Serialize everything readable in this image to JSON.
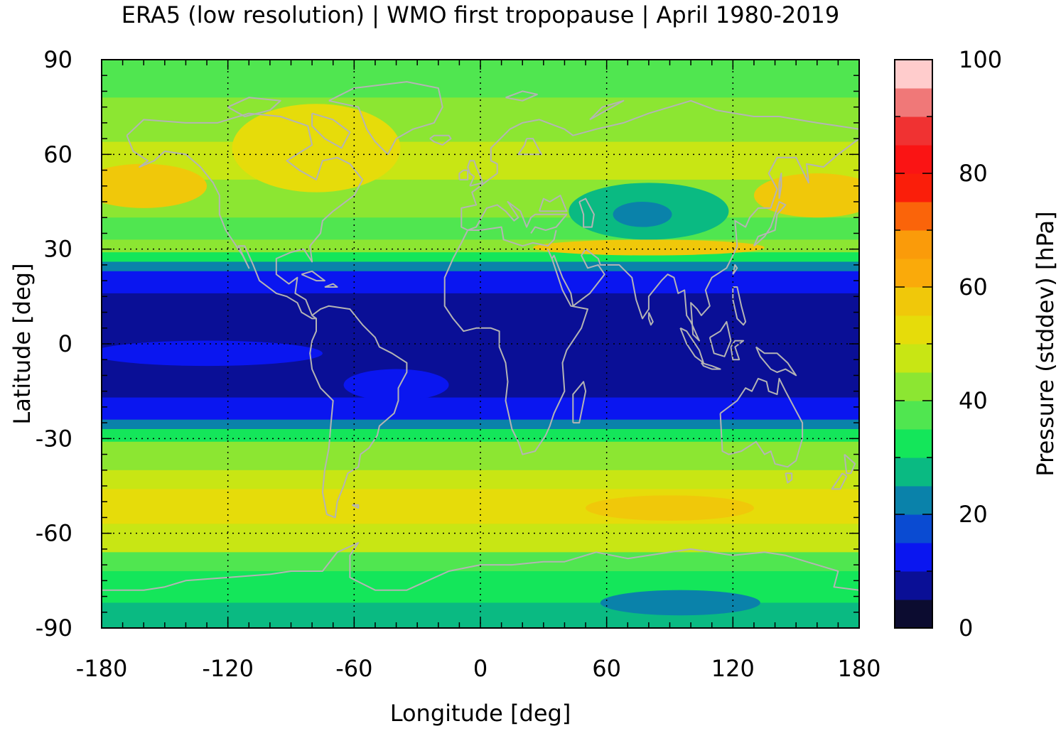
{
  "chart_data": {
    "type": "heatmap",
    "title": "ERA5 (low resolution) | WMO first tropopause | April 1980-2019",
    "xlabel": "Longitude [deg]",
    "ylabel": "Latitude [deg]",
    "colorbar_label": "Pressure (stddev) [hPa]",
    "xlim": [
      -180,
      180
    ],
    "ylim": [
      -90,
      90
    ],
    "x_ticks": [
      -180,
      -120,
      -60,
      0,
      60,
      120,
      180
    ],
    "y_ticks": [
      90,
      60,
      30,
      0,
      -30,
      -60,
      -90
    ],
    "x_tick_labels": [
      "-180",
      "-120",
      "-60",
      "0",
      "60",
      "120",
      "180"
    ],
    "y_tick_labels": [
      "90",
      "60",
      "30",
      "0",
      "-30",
      "-60",
      "-90"
    ],
    "grid": true,
    "colorbar": {
      "range": [
        0,
        100
      ],
      "ticks": [
        0,
        20,
        40,
        60,
        80,
        100
      ],
      "tick_labels": [
        "0",
        "20",
        "40",
        "60",
        "80",
        "100"
      ],
      "levels": [
        {
          "from": 0,
          "to": 5,
          "color": "#0c0c30"
        },
        {
          "from": 5,
          "to": 10,
          "color": "#0a0f96"
        },
        {
          "from": 10,
          "to": 15,
          "color": "#0a16f0"
        },
        {
          "from": 15,
          "to": 20,
          "color": "#0a4bd2"
        },
        {
          "from": 20,
          "to": 25,
          "color": "#0a82aa"
        },
        {
          "from": 25,
          "to": 30,
          "color": "#0aba82"
        },
        {
          "from": 30,
          "to": 35,
          "color": "#14e65a"
        },
        {
          "from": 35,
          "to": 40,
          "color": "#50e650"
        },
        {
          "from": 40,
          "to": 45,
          "color": "#8ce632"
        },
        {
          "from": 45,
          "to": 50,
          "color": "#c8e614"
        },
        {
          "from": 50,
          "to": 55,
          "color": "#e6dc0a"
        },
        {
          "from": 55,
          "to": 60,
          "color": "#f0c80a"
        },
        {
          "from": 60,
          "to": 65,
          "color": "#faaa0a"
        },
        {
          "from": 65,
          "to": 70,
          "color": "#fa9b0a"
        },
        {
          "from": 70,
          "to": 75,
          "color": "#fa640a"
        },
        {
          "from": 75,
          "to": 80,
          "color": "#fa1e0a"
        },
        {
          "from": 80,
          "to": 85,
          "color": "#fa1414"
        },
        {
          "from": 85,
          "to": 90,
          "color": "#f03232"
        },
        {
          "from": 90,
          "to": 95,
          "color": "#f07878"
        },
        {
          "from": 95,
          "to": 100,
          "color": "#ffcccc"
        }
      ]
    },
    "zonal_bands": [
      {
        "lat_from": 90,
        "lat_to": 78,
        "value": 38
      },
      {
        "lat_from": 78,
        "lat_to": 64,
        "value": 44
      },
      {
        "lat_from": 64,
        "lat_to": 52,
        "value": 49
      },
      {
        "lat_from": 52,
        "lat_to": 40,
        "value": 43
      },
      {
        "lat_from": 40,
        "lat_to": 33,
        "value": 37
      },
      {
        "lat_from": 33,
        "lat_to": 29,
        "value": 42
      },
      {
        "lat_from": 29,
        "lat_to": 26,
        "value": 32
      },
      {
        "lat_from": 26,
        "lat_to": 23,
        "value": 22
      },
      {
        "lat_from": 23,
        "lat_to": 16,
        "value": 12
      },
      {
        "lat_from": 16,
        "lat_to": -17,
        "value": 7
      },
      {
        "lat_from": -17,
        "lat_to": -24,
        "value": 12
      },
      {
        "lat_from": -24,
        "lat_to": -27,
        "value": 22
      },
      {
        "lat_from": -27,
        "lat_to": -31,
        "value": 33
      },
      {
        "lat_from": -31,
        "lat_to": -40,
        "value": 43
      },
      {
        "lat_from": -40,
        "lat_to": -46,
        "value": 47
      },
      {
        "lat_from": -46,
        "lat_to": -57,
        "value": 52
      },
      {
        "lat_from": -57,
        "lat_to": -66,
        "value": 46
      },
      {
        "lat_from": -66,
        "lat_to": -72,
        "value": 39
      },
      {
        "lat_from": -72,
        "lat_to": -82,
        "value": 33
      },
      {
        "lat_from": -82,
        "lat_to": -90,
        "value": 28
      }
    ],
    "features": [
      {
        "name": "asia-low",
        "lon_center": 80,
        "lat_center": 42,
        "lon_radius": 38,
        "lat_radius": 9,
        "value": 28
      },
      {
        "name": "asia-core",
        "lon_center": 77,
        "lat_center": 41,
        "lon_radius": 14,
        "lat_radius": 4,
        "value": 22
      },
      {
        "name": "north-america-high",
        "lon_center": -78,
        "lat_center": 62,
        "lon_radius": 40,
        "lat_radius": 14,
        "value": 54
      },
      {
        "name": "north-pacific-high",
        "lon_center": -160,
        "lat_center": 50,
        "lon_radius": 30,
        "lat_radius": 7,
        "value": 55
      },
      {
        "name": "north-pacific-high-east",
        "lon_center": 160,
        "lat_center": 47,
        "lon_radius": 30,
        "lat_radius": 7,
        "value": 55
      },
      {
        "name": "south-asia-jet",
        "lon_center": 80,
        "lat_center": 30.5,
        "lon_radius": 55,
        "lat_radius": 2.5,
        "value": 58
      },
      {
        "name": "pacific-narrow-tropics",
        "lon_center": -130,
        "lat_center": -3,
        "lon_radius": 55,
        "lat_radius": 4,
        "value": 12
      },
      {
        "name": "south-america-low",
        "lon_center": -40,
        "lat_center": -13,
        "lon_radius": 25,
        "lat_radius": 5,
        "value": 12
      },
      {
        "name": "south-indian-high",
        "lon_center": 90,
        "lat_center": -52,
        "lon_radius": 40,
        "lat_radius": 4,
        "value": 57
      },
      {
        "name": "antarctic-low",
        "lon_center": 95,
        "lat_center": -82,
        "lon_radius": 38,
        "lat_radius": 4,
        "value": 22
      }
    ],
    "coastline_color": "#b4b4b4"
  }
}
